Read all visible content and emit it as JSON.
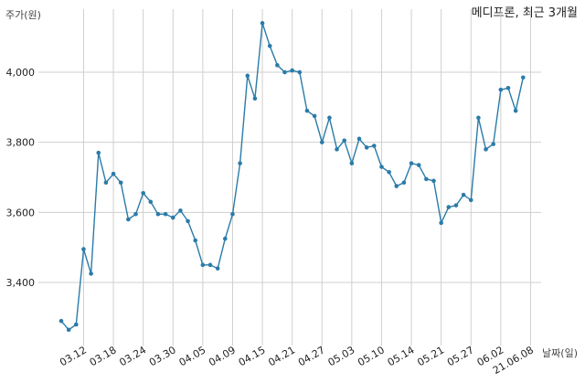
{
  "chart_data": {
    "type": "line",
    "title": "메디프론, 최근 3개월",
    "ylabel": "주가(원)",
    "xlabel": "날짜(일)",
    "ylim": [
      3220,
      4180
    ],
    "yticks": [
      3400,
      3600,
      3800,
      4000
    ],
    "ytick_labels": [
      "3,400",
      "3,600",
      "3,800",
      "4,000"
    ],
    "xticks": [
      {
        "label": "03.12",
        "index": 3
      },
      {
        "label": "03.18",
        "index": 7
      },
      {
        "label": "03.24",
        "index": 11
      },
      {
        "label": "03.30",
        "index": 15
      },
      {
        "label": "04.05",
        "index": 19
      },
      {
        "label": "04.09",
        "index": 23
      },
      {
        "label": "04.15",
        "index": 27
      },
      {
        "label": "04.21",
        "index": 31
      },
      {
        "label": "04.27",
        "index": 35
      },
      {
        "label": "05.03",
        "index": 39
      },
      {
        "label": "05.10",
        "index": 43
      },
      {
        "label": "05.14",
        "index": 47
      },
      {
        "label": "05.21",
        "index": 51
      },
      {
        "label": "05.27",
        "index": 55
      },
      {
        "label": "06.02",
        "index": 59
      },
      {
        "label": "21.06.08",
        "index": 63
      }
    ],
    "grid": true,
    "legend": "none",
    "colors": {
      "line": "#2a7ba8",
      "grid": "#cfcfcf"
    },
    "series": [
      {
        "values": [
          3290,
          3265,
          3280,
          3495,
          3425,
          3770,
          3685,
          3710,
          3685,
          3580,
          3595,
          3655,
          3630,
          3595,
          3595,
          3585,
          3605,
          3575,
          3520,
          3450,
          3450,
          3440,
          3525,
          3595,
          3740,
          3990,
          3925,
          4140,
          4075,
          4020,
          4000,
          4005,
          4000,
          3890,
          3875,
          3800,
          3870,
          3780,
          3805,
          3740,
          3810,
          3785,
          3790,
          3730,
          3715,
          3675,
          3685,
          3740,
          3735,
          3695,
          3690,
          3570,
          3615,
          3620,
          3650,
          3635,
          3870,
          3780,
          3795,
          3950,
          3955,
          3890,
          3985
        ]
      }
    ]
  }
}
